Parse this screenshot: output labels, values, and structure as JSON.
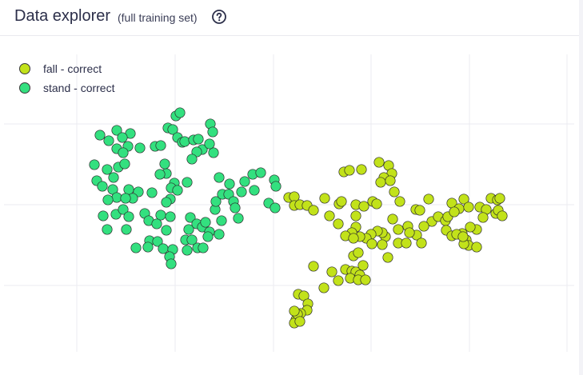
{
  "header": {
    "title": "Data explorer",
    "subtitle": "(full training set)",
    "help_icon": "question-circle-icon"
  },
  "colors": {
    "fall": "#c2e21a",
    "stand": "#33e07f",
    "point_stroke": "#2a2a2a",
    "grid": "#ebebf0"
  },
  "legend": [
    {
      "label": "fall - correct",
      "color": "#c2e21a"
    },
    {
      "label": "stand - correct",
      "color": "#33e07f"
    }
  ],
  "chart_data": {
    "type": "scatter",
    "grid": true,
    "xlim": [
      0,
      729
    ],
    "ylim": [
      469,
      46
    ],
    "series": [
      {
        "name": "stand - correct",
        "color": "#33e07f",
        "points": [
          [
            125,
            169
          ],
          [
            146,
            163
          ],
          [
            163,
            167
          ],
          [
            153,
            172
          ],
          [
            136,
            176
          ],
          [
            146,
            186
          ],
          [
            160,
            183
          ],
          [
            154,
            191
          ],
          [
            118,
            206
          ],
          [
            134,
            212
          ],
          [
            148,
            209
          ],
          [
            156,
            205
          ],
          [
            142,
            222
          ],
          [
            121,
            226
          ],
          [
            128,
            233
          ],
          [
            141,
            237
          ],
          [
            146,
            247
          ],
          [
            161,
            237
          ],
          [
            173,
            240
          ],
          [
            166,
            248
          ],
          [
            157,
            248
          ],
          [
            135,
            250
          ],
          [
            129,
            270
          ],
          [
            145,
            268
          ],
          [
            154,
            262
          ],
          [
            161,
            271
          ],
          [
            134,
            287
          ],
          [
            158,
            287
          ],
          [
            190,
            241
          ],
          [
            175,
            185
          ],
          [
            194,
            183
          ],
          [
            201,
            182
          ],
          [
            210,
            160
          ],
          [
            216,
            162
          ],
          [
            220,
            145
          ],
          [
            225,
            141
          ],
          [
            222,
            172
          ],
          [
            228,
            178
          ],
          [
            231,
            177
          ],
          [
            242,
            175
          ],
          [
            208,
            217
          ],
          [
            200,
            218
          ],
          [
            206,
            205
          ],
          [
            218,
            229
          ],
          [
            214,
            235
          ],
          [
            234,
            228
          ],
          [
            222,
            238
          ],
          [
            213,
            249
          ],
          [
            208,
            253
          ],
          [
            201,
            269
          ],
          [
            213,
            271
          ],
          [
            181,
            267
          ],
          [
            186,
            276
          ],
          [
            196,
            280
          ],
          [
            208,
            288
          ],
          [
            187,
            301
          ],
          [
            197,
            302
          ],
          [
            204,
            311
          ],
          [
            216,
            312
          ],
          [
            212,
            321
          ],
          [
            214,
            330
          ],
          [
            185,
            309
          ],
          [
            170,
            310
          ],
          [
            234,
            313
          ],
          [
            232,
            300
          ],
          [
            236,
            287
          ],
          [
            238,
            272
          ],
          [
            246,
            280
          ],
          [
            253,
            284
          ],
          [
            240,
            300
          ],
          [
            247,
            310
          ],
          [
            262,
            290
          ],
          [
            274,
            293
          ],
          [
            277,
            276
          ],
          [
            269,
            262
          ],
          [
            270,
            252
          ],
          [
            278,
            243
          ],
          [
            286,
            243
          ],
          [
            292,
            252
          ],
          [
            274,
            222
          ],
          [
            287,
            230
          ],
          [
            294,
            260
          ],
          [
            298,
            273
          ],
          [
            302,
            240
          ],
          [
            306,
            227
          ],
          [
            318,
            238
          ],
          [
            316,
            218
          ],
          [
            326,
            216
          ],
          [
            343,
            225
          ],
          [
            345,
            233
          ],
          [
            336,
            254
          ],
          [
            344,
            260
          ],
          [
            263,
            155
          ],
          [
            266,
            165
          ],
          [
            248,
            174
          ],
          [
            253,
            187
          ],
          [
            267,
            191
          ],
          [
            262,
            180
          ],
          [
            246,
            190
          ],
          [
            240,
            199
          ],
          [
            254,
            310
          ],
          [
            260,
            296
          ],
          [
            257,
            278
          ]
        ]
      },
      {
        "name": "fall - correct",
        "color": "#c2e21a",
        "points": [
          [
            361,
            247
          ],
          [
            368,
            246
          ],
          [
            368,
            257
          ],
          [
            375,
            256
          ],
          [
            384,
            257
          ],
          [
            392,
            263
          ],
          [
            406,
            248
          ],
          [
            412,
            270
          ],
          [
            424,
            255
          ],
          [
            427,
            252
          ],
          [
            423,
            280
          ],
          [
            430,
            215
          ],
          [
            437,
            213
          ],
          [
            452,
            212
          ],
          [
            474,
            203
          ],
          [
            486,
            207
          ],
          [
            490,
            217
          ],
          [
            480,
            222
          ],
          [
            476,
            228
          ],
          [
            488,
            226
          ],
          [
            466,
            252
          ],
          [
            445,
            256
          ],
          [
            455,
            258
          ],
          [
            445,
            270
          ],
          [
            471,
            255
          ],
          [
            493,
            240
          ],
          [
            500,
            252
          ],
          [
            520,
            262
          ],
          [
            525,
            263
          ],
          [
            536,
            249
          ],
          [
            540,
            277
          ],
          [
            530,
            283
          ],
          [
            521,
            294
          ],
          [
            510,
            283
          ],
          [
            512,
            291
          ],
          [
            498,
            287
          ],
          [
            491,
            274
          ],
          [
            482,
            296
          ],
          [
            478,
            291
          ],
          [
            472,
            289
          ],
          [
            464,
            293
          ],
          [
            458,
            298
          ],
          [
            450,
            296
          ],
          [
            445,
            284
          ],
          [
            440,
            291
          ],
          [
            432,
            295
          ],
          [
            442,
            298
          ],
          [
            465,
            305
          ],
          [
            478,
            306
          ],
          [
            485,
            322
          ],
          [
            498,
            304
          ],
          [
            508,
            304
          ],
          [
            527,
            304
          ],
          [
            548,
            271
          ],
          [
            557,
            276
          ],
          [
            558,
            288
          ],
          [
            565,
            254
          ],
          [
            574,
            261
          ],
          [
            580,
            249
          ],
          [
            586,
            259
          ],
          [
            600,
            259
          ],
          [
            614,
            248
          ],
          [
            622,
            250
          ],
          [
            625,
            248
          ],
          [
            608,
            262
          ],
          [
            604,
            272
          ],
          [
            620,
            267
          ],
          [
            623,
            263
          ],
          [
            628,
            270
          ],
          [
            596,
            287
          ],
          [
            588,
            284
          ],
          [
            578,
            292
          ],
          [
            583,
            300
          ],
          [
            586,
            307
          ],
          [
            596,
            309
          ],
          [
            580,
            305
          ],
          [
            560,
            271
          ],
          [
            568,
            265
          ],
          [
            565,
            295
          ],
          [
            571,
            293
          ],
          [
            579,
            296
          ],
          [
            432,
            337
          ],
          [
            440,
            339
          ],
          [
            445,
            340
          ],
          [
            450,
            344
          ],
          [
            454,
            332
          ],
          [
            442,
            320
          ],
          [
            448,
            316
          ],
          [
            438,
            348
          ],
          [
            448,
            350
          ],
          [
            457,
            350
          ],
          [
            423,
            351
          ],
          [
            415,
            340
          ],
          [
            405,
            360
          ],
          [
            392,
            333
          ],
          [
            373,
            368
          ],
          [
            380,
            370
          ],
          [
            385,
            380
          ],
          [
            384,
            388
          ],
          [
            376,
            392
          ],
          [
            370,
            400
          ],
          [
            368,
            404
          ],
          [
            372,
            393
          ],
          [
            368,
            389
          ],
          [
            375,
            402
          ]
        ]
      }
    ]
  }
}
